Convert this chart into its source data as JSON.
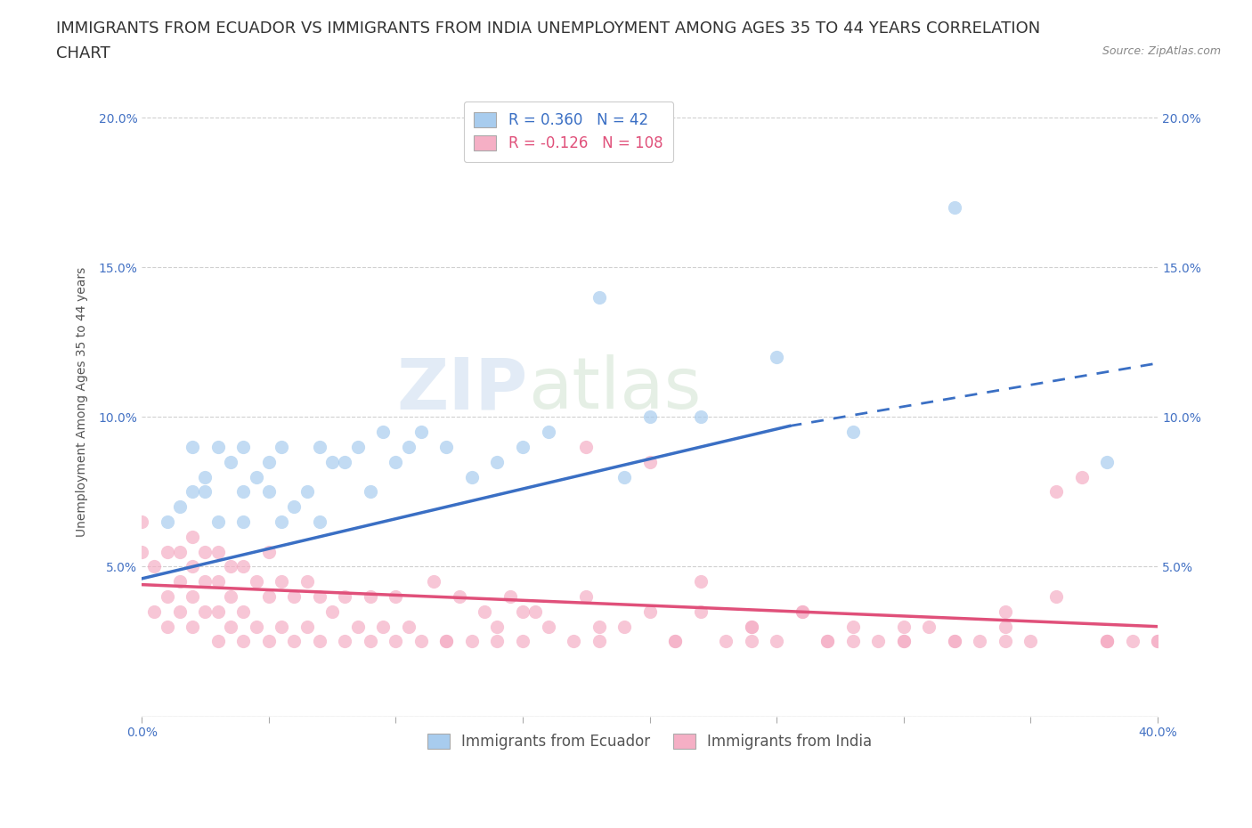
{
  "title_line1": "IMMIGRANTS FROM ECUADOR VS IMMIGRANTS FROM INDIA UNEMPLOYMENT AMONG AGES 35 TO 44 YEARS CORRELATION",
  "title_line2": "CHART",
  "source": "Source: ZipAtlas.com",
  "ylabel": "Unemployment Among Ages 35 to 44 years",
  "xlim": [
    0.0,
    0.4
  ],
  "ylim": [
    0.0,
    0.21
  ],
  "xticks": [
    0.0,
    0.05,
    0.1,
    0.15,
    0.2,
    0.25,
    0.3,
    0.35,
    0.4
  ],
  "yticks": [
    0.0,
    0.05,
    0.1,
    0.15,
    0.2
  ],
  "ecuador_color": "#a8ccee",
  "india_color": "#f5afc5",
  "ecuador_R": 0.36,
  "ecuador_N": 42,
  "india_R": -0.126,
  "india_N": 108,
  "ecuador_scatter_x": [
    0.01,
    0.015,
    0.02,
    0.02,
    0.025,
    0.025,
    0.03,
    0.03,
    0.035,
    0.04,
    0.04,
    0.04,
    0.045,
    0.05,
    0.05,
    0.055,
    0.055,
    0.06,
    0.065,
    0.07,
    0.07,
    0.075,
    0.08,
    0.085,
    0.09,
    0.095,
    0.1,
    0.105,
    0.11,
    0.12,
    0.13,
    0.14,
    0.15,
    0.16,
    0.18,
    0.19,
    0.2,
    0.22,
    0.25,
    0.28,
    0.32,
    0.38
  ],
  "ecuador_scatter_y": [
    0.065,
    0.07,
    0.075,
    0.09,
    0.075,
    0.08,
    0.065,
    0.09,
    0.085,
    0.065,
    0.075,
    0.09,
    0.08,
    0.075,
    0.085,
    0.065,
    0.09,
    0.07,
    0.075,
    0.065,
    0.09,
    0.085,
    0.085,
    0.09,
    0.075,
    0.095,
    0.085,
    0.09,
    0.095,
    0.09,
    0.08,
    0.085,
    0.09,
    0.095,
    0.14,
    0.08,
    0.1,
    0.1,
    0.12,
    0.095,
    0.17,
    0.085
  ],
  "india_scatter_x": [
    0.0,
    0.0,
    0.005,
    0.005,
    0.01,
    0.01,
    0.01,
    0.015,
    0.015,
    0.015,
    0.02,
    0.02,
    0.02,
    0.02,
    0.025,
    0.025,
    0.025,
    0.03,
    0.03,
    0.03,
    0.03,
    0.035,
    0.035,
    0.035,
    0.04,
    0.04,
    0.04,
    0.045,
    0.045,
    0.05,
    0.05,
    0.05,
    0.055,
    0.055,
    0.06,
    0.06,
    0.065,
    0.065,
    0.07,
    0.07,
    0.075,
    0.08,
    0.08,
    0.085,
    0.09,
    0.09,
    0.095,
    0.1,
    0.1,
    0.105,
    0.11,
    0.115,
    0.12,
    0.125,
    0.13,
    0.135,
    0.14,
    0.145,
    0.15,
    0.155,
    0.16,
    0.17,
    0.175,
    0.18,
    0.19,
    0.2,
    0.21,
    0.22,
    0.23,
    0.24,
    0.25,
    0.26,
    0.27,
    0.28,
    0.29,
    0.3,
    0.31,
    0.32,
    0.33,
    0.34,
    0.35,
    0.36,
    0.37,
    0.38,
    0.39,
    0.4,
    0.175,
    0.2,
    0.22,
    0.24,
    0.26,
    0.28,
    0.3,
    0.32,
    0.34,
    0.36,
    0.38,
    0.4,
    0.15,
    0.18,
    0.21,
    0.24,
    0.27,
    0.3,
    0.34,
    0.38,
    0.12,
    0.14
  ],
  "india_scatter_y": [
    0.055,
    0.065,
    0.035,
    0.05,
    0.03,
    0.04,
    0.055,
    0.035,
    0.045,
    0.055,
    0.03,
    0.04,
    0.05,
    0.06,
    0.035,
    0.045,
    0.055,
    0.025,
    0.035,
    0.045,
    0.055,
    0.03,
    0.04,
    0.05,
    0.025,
    0.035,
    0.05,
    0.03,
    0.045,
    0.025,
    0.04,
    0.055,
    0.03,
    0.045,
    0.025,
    0.04,
    0.03,
    0.045,
    0.025,
    0.04,
    0.035,
    0.025,
    0.04,
    0.03,
    0.025,
    0.04,
    0.03,
    0.025,
    0.04,
    0.03,
    0.025,
    0.045,
    0.025,
    0.04,
    0.025,
    0.035,
    0.025,
    0.04,
    0.025,
    0.035,
    0.03,
    0.025,
    0.04,
    0.025,
    0.03,
    0.085,
    0.025,
    0.035,
    0.025,
    0.03,
    0.025,
    0.035,
    0.025,
    0.03,
    0.025,
    0.025,
    0.03,
    0.025,
    0.025,
    0.03,
    0.025,
    0.075,
    0.08,
    0.025,
    0.025,
    0.025,
    0.09,
    0.035,
    0.045,
    0.03,
    0.035,
    0.025,
    0.03,
    0.025,
    0.025,
    0.04,
    0.025,
    0.025,
    0.035,
    0.03,
    0.025,
    0.025,
    0.025,
    0.025,
    0.035,
    0.025,
    0.025,
    0.03
  ],
  "ecuador_trend": [
    0.0,
    0.255,
    0.046,
    0.097
  ],
  "ecuador_trend_dashed": [
    0.255,
    0.4,
    0.097,
    0.118
  ],
  "india_trend": [
    0.0,
    0.4,
    0.044,
    0.03
  ],
  "watermark_line1": "ZIP",
  "watermark_line2": "atlas",
  "background_color": "#ffffff",
  "grid_color": "#d0d0d0",
  "ecuador_line_color": "#3a6fc4",
  "india_line_color": "#e0507a",
  "title_fontsize": 13,
  "axis_label_fontsize": 10,
  "tick_fontsize": 10,
  "legend_fontsize": 12
}
